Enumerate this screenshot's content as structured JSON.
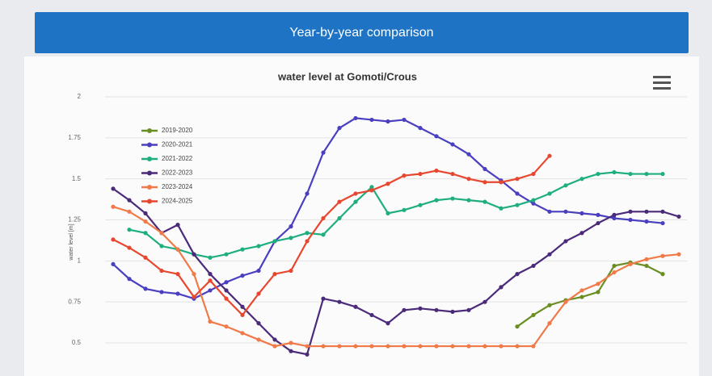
{
  "header": {
    "title": "Year-by-year comparison"
  },
  "chart_data": {
    "type": "line",
    "title": "water level at Gomoti/Crous",
    "y_label": "water level [m]",
    "categories": [
      null,
      null,
      null,
      null,
      null,
      null,
      null,
      null,
      null,
      null,
      null,
      null,
      null,
      null,
      null,
      null,
      null,
      null,
      null,
      null,
      null,
      null,
      null,
      null,
      null,
      null,
      null,
      null,
      null,
      null,
      null,
      null,
      null,
      null,
      null,
      null
    ],
    "ylim": [
      0.5,
      2
    ],
    "yticks": [
      0.5,
      0.75,
      1,
      1.25,
      1.5,
      1.75,
      2
    ],
    "grid": true,
    "legend": "upper left",
    "series": [
      {
        "name": "2019-2020",
        "color": "#6b8e23",
        "values": [
          null,
          null,
          null,
          null,
          null,
          null,
          null,
          null,
          null,
          null,
          null,
          null,
          null,
          null,
          null,
          null,
          null,
          null,
          null,
          null,
          null,
          null,
          null,
          null,
          null,
          0.6,
          0.67,
          0.73,
          0.76,
          0.78,
          0.81,
          0.97,
          0.99,
          0.97,
          0.92,
          null
        ]
      },
      {
        "name": "2020-2021",
        "color": "#4a3fc0",
        "values": [
          0.98,
          0.89,
          0.83,
          0.81,
          0.8,
          0.77,
          0.82,
          0.87,
          0.91,
          0.94,
          1.12,
          1.21,
          1.41,
          1.66,
          1.81,
          1.87,
          1.86,
          1.85,
          1.86,
          1.81,
          1.76,
          1.71,
          1.65,
          1.56,
          1.49,
          1.41,
          1.35,
          1.3,
          1.3,
          1.29,
          1.28,
          1.26,
          1.25,
          1.24,
          1.23,
          null
        ]
      },
      {
        "name": "2021-2022",
        "color": "#1fae7f",
        "values": [
          null,
          1.19,
          1.17,
          1.09,
          1.07,
          1.04,
          1.02,
          1.04,
          1.07,
          1.09,
          1.12,
          1.14,
          1.17,
          1.16,
          1.26,
          1.36,
          1.45,
          1.29,
          1.31,
          1.34,
          1.37,
          1.38,
          1.37,
          1.36,
          1.32,
          1.34,
          1.37,
          1.41,
          1.46,
          1.5,
          1.53,
          1.54,
          1.53,
          1.53,
          1.53,
          null
        ]
      },
      {
        "name": "2022-2023",
        "color": "#4b2a7a",
        "values": [
          1.44,
          1.37,
          1.29,
          1.17,
          1.22,
          1.04,
          0.92,
          0.82,
          0.72,
          0.62,
          0.52,
          0.45,
          0.43,
          0.77,
          0.75,
          0.72,
          0.67,
          0.62,
          0.7,
          0.71,
          0.7,
          0.69,
          0.7,
          0.75,
          0.84,
          0.92,
          0.97,
          1.04,
          1.12,
          1.17,
          1.23,
          1.28,
          1.3,
          1.3,
          1.3,
          1.27
        ]
      },
      {
        "name": "2023-2024",
        "color": "#f07a48",
        "values": [
          1.33,
          1.3,
          1.24,
          1.17,
          1.07,
          0.92,
          0.63,
          0.6,
          0.56,
          0.52,
          0.48,
          0.5,
          0.48,
          0.48,
          0.48,
          0.48,
          0.48,
          0.48,
          0.48,
          0.48,
          0.48,
          0.48,
          0.48,
          0.48,
          0.48,
          0.48,
          0.48,
          0.62,
          0.75,
          0.82,
          0.86,
          0.93,
          0.98,
          1.01,
          1.03,
          1.04
        ]
      },
      {
        "name": "2024-2025",
        "color": "#e8472f",
        "values": [
          1.13,
          1.08,
          1.02,
          0.94,
          0.92,
          0.78,
          0.88,
          0.77,
          0.67,
          0.8,
          0.92,
          0.94,
          1.12,
          1.26,
          1.36,
          1.41,
          1.43,
          1.47,
          1.52,
          1.53,
          1.55,
          1.53,
          1.5,
          1.48,
          1.48,
          1.5,
          1.53,
          1.64,
          null,
          null,
          null,
          null,
          null,
          null,
          null,
          null
        ]
      }
    ]
  }
}
